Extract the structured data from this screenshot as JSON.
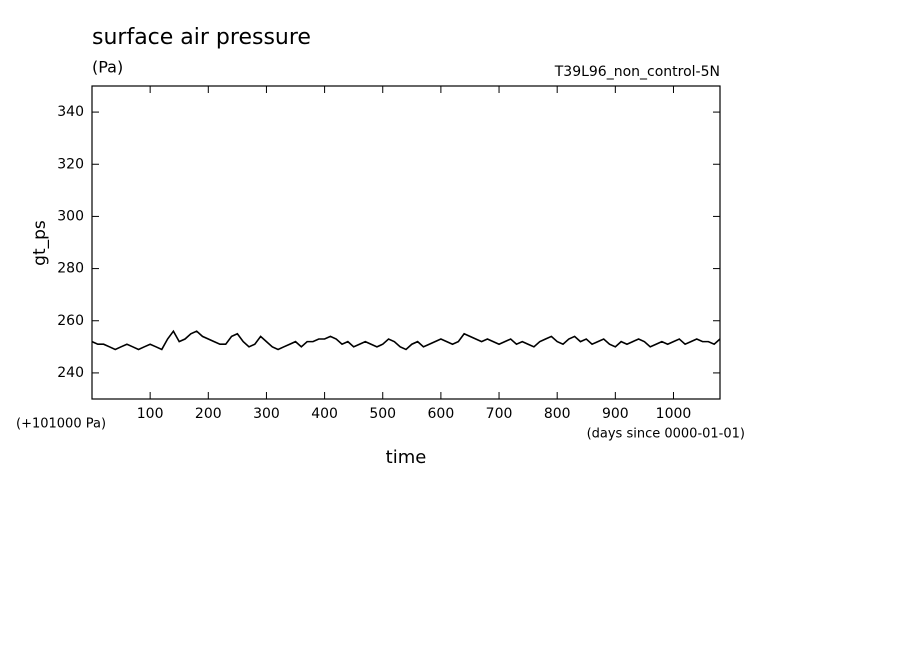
{
  "chart_data": {
    "type": "line",
    "title": "surface air pressure",
    "subtitle": "(Pa)",
    "annotation_right": "T39L96_non_control-5N",
    "ylabel": "gt_ps",
    "xlabel": "time",
    "y_offset_label": "(+101000 Pa)",
    "x_unit_label": "(days since 0000-01-01)",
    "xlim": [
      0,
      1080
    ],
    "ylim": [
      230,
      350
    ],
    "xticks": [
      100,
      200,
      300,
      400,
      500,
      600,
      700,
      800,
      900,
      1000
    ],
    "yticks": [
      240,
      260,
      280,
      300,
      320,
      340
    ],
    "grid": false,
    "series": [
      {
        "color": "#000000",
        "x": [
          0,
          10,
          20,
          30,
          40,
          50,
          60,
          70,
          80,
          90,
          100,
          110,
          120,
          130,
          140,
          150,
          160,
          170,
          180,
          190,
          200,
          210,
          220,
          230,
          240,
          250,
          260,
          270,
          280,
          290,
          300,
          310,
          320,
          330,
          340,
          350,
          360,
          370,
          380,
          390,
          400,
          410,
          420,
          430,
          440,
          450,
          460,
          470,
          480,
          490,
          500,
          510,
          520,
          530,
          540,
          550,
          560,
          570,
          580,
          590,
          600,
          610,
          620,
          630,
          640,
          650,
          660,
          670,
          680,
          690,
          700,
          710,
          720,
          730,
          740,
          750,
          760,
          770,
          780,
          790,
          800,
          810,
          820,
          830,
          840,
          850,
          860,
          870,
          880,
          890,
          900,
          910,
          920,
          930,
          940,
          950,
          960,
          970,
          980,
          990,
          1000,
          1010,
          1020,
          1030,
          1040,
          1050,
          1060,
          1070,
          1080
        ],
        "values": [
          252,
          251,
          251,
          250,
          249,
          250,
          251,
          250,
          249,
          250,
          251,
          250,
          249,
          253,
          256,
          252,
          253,
          255,
          256,
          254,
          253,
          252,
          251,
          251,
          254,
          255,
          252,
          250,
          251,
          254,
          252,
          250,
          249,
          250,
          251,
          252,
          250,
          252,
          252,
          253,
          253,
          254,
          253,
          251,
          252,
          250,
          251,
          252,
          251,
          250,
          251,
          253,
          252,
          250,
          249,
          251,
          252,
          250,
          251,
          252,
          253,
          252,
          251,
          252,
          255,
          254,
          253,
          252,
          253,
          252,
          251,
          252,
          253,
          251,
          252,
          251,
          250,
          252,
          253,
          254,
          252,
          251,
          253,
          254,
          252,
          253,
          251,
          252,
          253,
          251,
          250,
          252,
          251,
          252,
          253,
          252,
          250,
          251,
          252,
          251,
          252,
          253,
          251,
          252,
          253,
          252,
          252,
          251,
          253
        ]
      }
    ]
  }
}
